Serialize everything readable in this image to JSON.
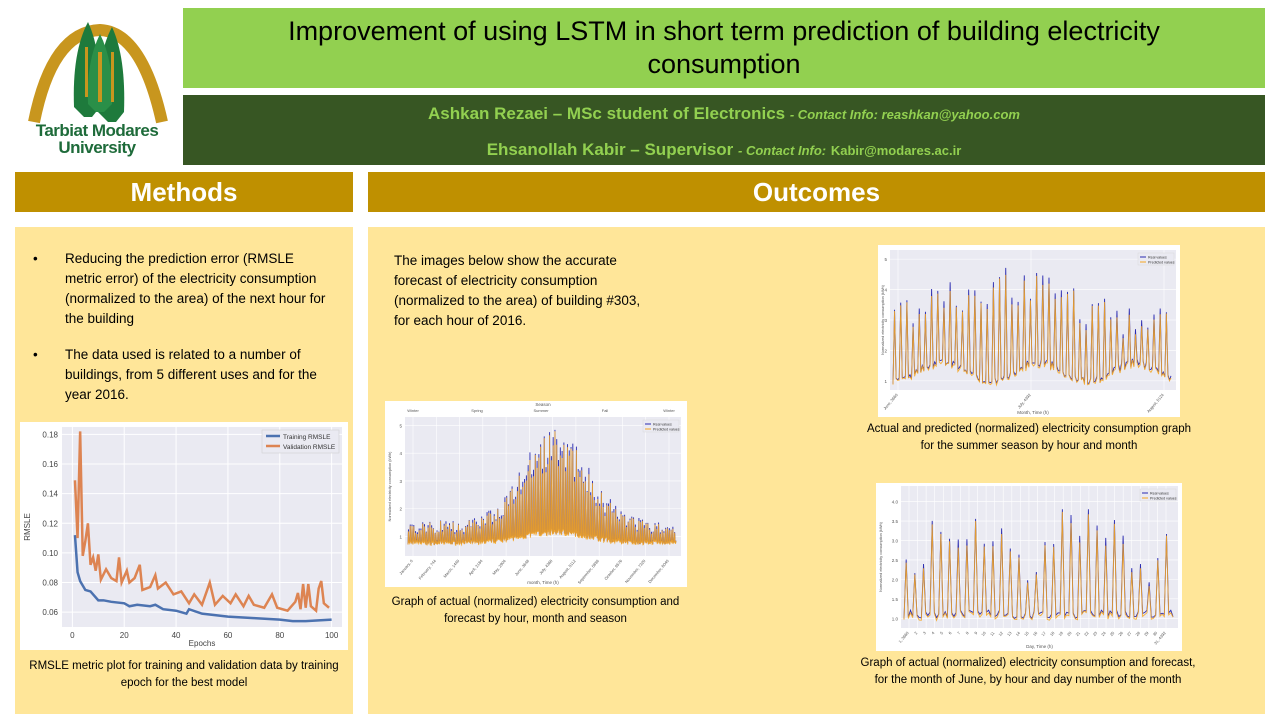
{
  "logo": {
    "line1": "Tarbiat Modares",
    "line2": "University",
    "colors": {
      "arc": "#c8961e",
      "tree": "#1e7a3c"
    }
  },
  "header": {
    "title": "Improvement of using LSTM in short term prediction of building electricity consumption",
    "authors": [
      {
        "name": "Ashkan Rezaei – MSc student of Electronics",
        "contact_label": "- Contact Info: reashkan@yahoo.com",
        "email": ""
      },
      {
        "name": "Ehsanollah  Kabir – Supervisor",
        "contact_label": "- Contact Info:",
        "email": "Kabir@modares.ac.ir"
      }
    ]
  },
  "methods": {
    "heading": "Methods",
    "bullets": [
      "Reducing the prediction error (RMSLE metric error) of the electricity consumption (normalized to the area) of the next hour for the building",
      "The data used is related to a number of buildings, from 5 different uses and for the year 2016."
    ],
    "figure_caption": "RMSLE metric plot for training and validation data by training epoch for the best model"
  },
  "outcomes": {
    "heading": "Outcomes",
    "intro": "The images below show the accurate forecast of electricity consumption (normalized to the area) of building #303, for each hour of 2016.",
    "captions": {
      "year": "Graph of actual (normalized) electricity consumption and forecast by hour, month and season",
      "summer": "Actual and predicted (normalized) electricity consumption graph for the summer season by hour and month",
      "june": "Graph of actual (normalized) electricity consumption and forecast, for the month of June,  by hour and day number of the month"
    }
  },
  "colors": {
    "title_bar": "#92d050",
    "author_bar": "#375623",
    "section_head": "#bf9000",
    "panel": "#ffe699",
    "train": "#4c72b0",
    "valid": "#dd8452",
    "real": "#2b2bb0",
    "pred": "#f5a623"
  },
  "chart_data": [
    {
      "id": "rmsle",
      "type": "line",
      "title": "",
      "xlabel": "Epochs",
      "ylabel": "RMSLE",
      "xlim": [
        -4,
        104
      ],
      "ylim": [
        0.05,
        0.185
      ],
      "xticks": [
        0,
        20,
        40,
        60,
        80,
        100
      ],
      "yticks": [
        "0.06",
        "0.08",
        "0.10",
        "0.12",
        "0.14",
        "0.16",
        "0.18"
      ],
      "grid": true,
      "legend": "top-right",
      "series": [
        {
          "name": "Training RMSLE",
          "x": [
            1,
            2,
            3,
            5,
            7,
            10,
            12,
            15,
            20,
            22,
            25,
            30,
            32,
            35,
            40,
            44,
            45,
            50,
            55,
            60,
            70,
            80,
            85,
            90,
            100
          ],
          "y": [
            0.112,
            0.087,
            0.081,
            0.075,
            0.074,
            0.068,
            0.068,
            0.067,
            0.066,
            0.064,
            0.065,
            0.064,
            0.065,
            0.062,
            0.061,
            0.059,
            0.062,
            0.059,
            0.058,
            0.057,
            0.056,
            0.055,
            0.054,
            0.054,
            0.055
          ]
        },
        {
          "name": "Validation RMSLE",
          "x": [
            1,
            2,
            3,
            4,
            5,
            6,
            7,
            8,
            9,
            10,
            11,
            13,
            15,
            17,
            18,
            19,
            21,
            22,
            24,
            26,
            27,
            30,
            32,
            33,
            36,
            39,
            42,
            45,
            47,
            50,
            53,
            55,
            58,
            61,
            63,
            66,
            68,
            70,
            74,
            77,
            79,
            83,
            86,
            87,
            88,
            89,
            90,
            91,
            92,
            94,
            95,
            96,
            97,
            99
          ],
          "y": [
            0.149,
            0.11,
            0.182,
            0.098,
            0.108,
            0.12,
            0.092,
            0.097,
            0.088,
            0.099,
            0.082,
            0.089,
            0.083,
            0.081,
            0.097,
            0.08,
            0.088,
            0.08,
            0.083,
            0.092,
            0.075,
            0.077,
            0.085,
            0.076,
            0.08,
            0.072,
            0.074,
            0.066,
            0.072,
            0.065,
            0.08,
            0.065,
            0.071,
            0.066,
            0.072,
            0.064,
            0.071,
            0.065,
            0.063,
            0.072,
            0.063,
            0.061,
            0.067,
            0.073,
            0.062,
            0.079,
            0.063,
            0.079,
            0.064,
            0.061,
            0.076,
            0.081,
            0.066,
            0.063
          ]
        }
      ]
    },
    {
      "id": "year",
      "type": "line",
      "title": "Season",
      "xlabel": "month, Time (h)",
      "ylabel": "Normalized electricity consumption (kWh)",
      "ylim": [
        0.3,
        5.3
      ],
      "yticks": [
        "1",
        "2",
        "3",
        "4",
        "5"
      ],
      "xticks": [
        "January, 0",
        "February, 744",
        "March, 1440",
        "April, 2184",
        "May, 2904",
        "June, 3648",
        "July, 4368",
        "August, 5112",
        "September, 5856",
        "October, 6576",
        "November, 7320",
        "December, 8040"
      ],
      "season_ticks": [
        "Winter",
        "Spring",
        "Summer",
        "Fall",
        "Winter"
      ],
      "legend": "top-right",
      "series": [
        {
          "name": "Real values"
        },
        {
          "name": "Predicted values"
        }
      ]
    },
    {
      "id": "summer",
      "type": "line",
      "title": "",
      "xlabel": "Month, Time (h)",
      "ylabel": "Normalized electricity consumption (kWh)",
      "ylim": [
        0.7,
        5.3
      ],
      "yticks": [
        "1",
        "2",
        "3",
        "4",
        "5"
      ],
      "xticks": [
        "June, 3660",
        "July, 4392",
        "August, 5124"
      ],
      "legend": "top-right",
      "series": [
        {
          "name": "Real values"
        },
        {
          "name": "Predicted values"
        }
      ]
    },
    {
      "id": "june",
      "type": "line",
      "title": "",
      "xlabel": "Day, Time (h)",
      "ylabel": "Normalized electricity consumption (kWh)",
      "ylim": [
        0.75,
        4.4
      ],
      "yticks": [
        "1.0",
        "1.5",
        "2.0",
        "2.5",
        "3.0",
        "3.5",
        "4.0"
      ],
      "xticks": [
        "1, 3660",
        "2",
        "3",
        "4",
        "5",
        "6",
        "7",
        "8",
        "9",
        "10",
        "11",
        "12",
        "13",
        "14",
        "15",
        "16",
        "17",
        "18",
        "19",
        "20",
        "21",
        "22",
        "23",
        "24",
        "25",
        "26",
        "27",
        "28",
        "29",
        "30",
        "31, 4392"
      ],
      "legend": "top-right",
      "series": [
        {
          "name": "Real values"
        },
        {
          "name": "Predicted values"
        }
      ]
    }
  ]
}
